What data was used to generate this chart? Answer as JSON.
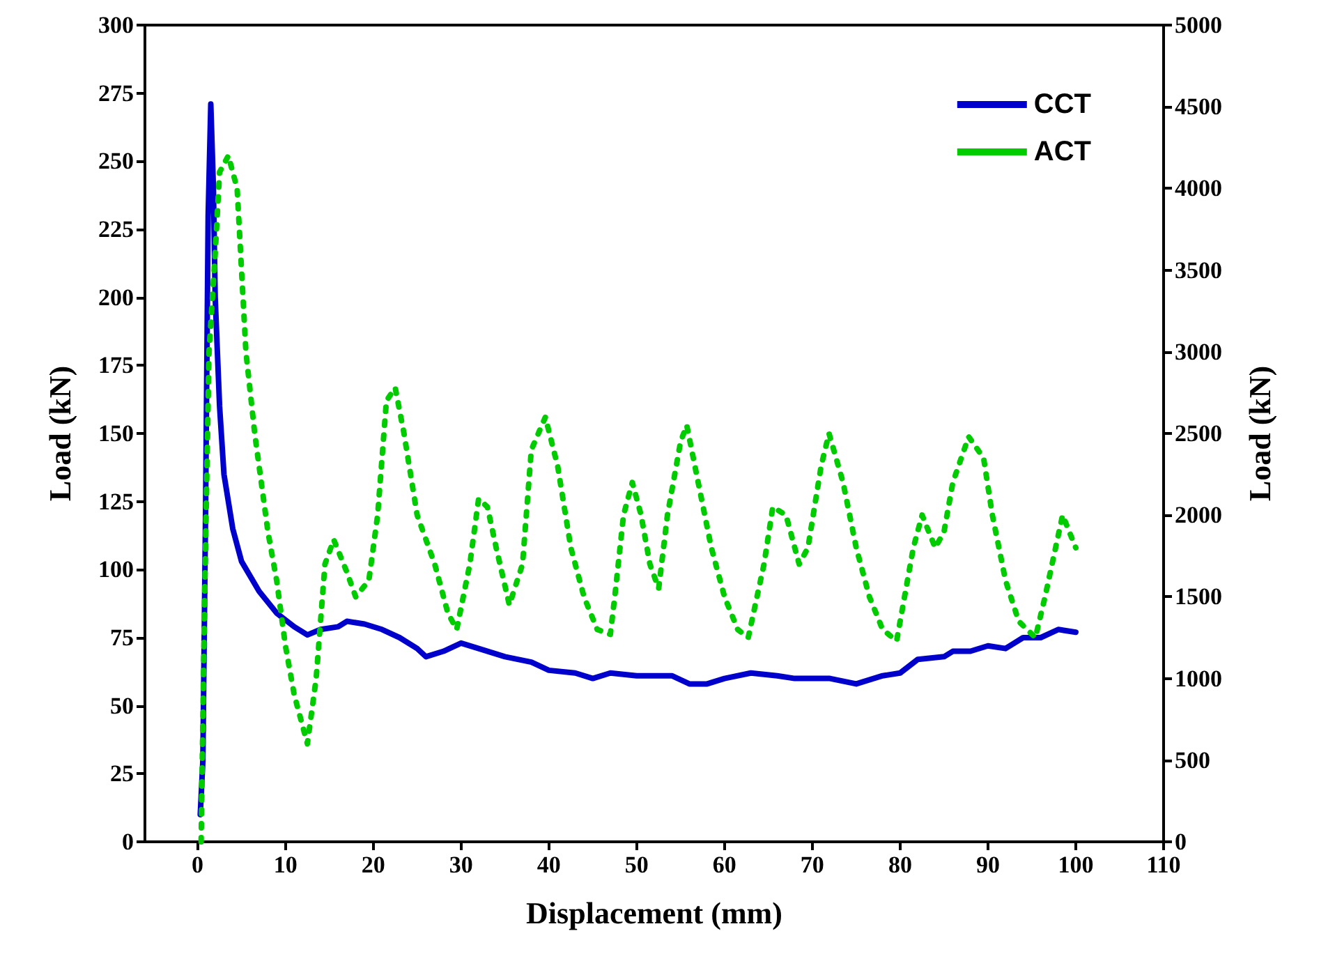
{
  "chart_data": {
    "type": "line",
    "xlabel": "Displacement (mm)",
    "ylabel": "Load (kN)",
    "y2label": "Load (kN)",
    "xlim": [
      -6,
      110
    ],
    "xticks": [
      0,
      10,
      20,
      30,
      40,
      50,
      60,
      70,
      80,
      90,
      100,
      110
    ],
    "ylim": [
      0,
      300
    ],
    "yticks": [
      0,
      25,
      50,
      75,
      100,
      125,
      150,
      175,
      200,
      225,
      250,
      275,
      300
    ],
    "y2lim": [
      0,
      5000
    ],
    "y2ticks": [
      0,
      500,
      1000,
      1500,
      2000,
      2500,
      3000,
      3500,
      4000,
      4500,
      5000
    ],
    "grid": false,
    "legend": "top right",
    "marker": "none",
    "series": [
      {
        "name": "CCT",
        "color": "#0000cc",
        "line_style": "solid",
        "x": [
          0.3,
          0.6,
          0.9,
          1.2,
          1.5,
          1.8,
          2,
          2.5,
          3,
          4,
          5,
          7,
          9,
          11,
          12.5,
          14,
          16,
          17,
          19,
          21,
          23,
          25,
          26,
          28,
          30,
          32,
          35,
          38,
          40,
          43,
          45,
          47,
          50,
          54,
          56,
          58,
          60,
          63,
          66,
          68,
          72,
          75,
          78,
          80,
          82,
          85,
          86,
          88,
          90,
          92,
          94,
          96,
          98,
          100
        ],
        "values": [
          10,
          30,
          120,
          230,
          271,
          240,
          200,
          160,
          135,
          115,
          103,
          92,
          84,
          79,
          76,
          78,
          79,
          81,
          80,
          78,
          75,
          71,
          68,
          70,
          73,
          71,
          68,
          66,
          63,
          62,
          60,
          62,
          61,
          61,
          58,
          58,
          60,
          62,
          61,
          60,
          60,
          58,
          61,
          62,
          67,
          68,
          70,
          70,
          72,
          71,
          75,
          75,
          78,
          77
        ]
      },
      {
        "name": "ACT",
        "color": "#00cc00",
        "line_style": "dotted",
        "axis": "y2",
        "x": [
          0.4,
          0.8,
          1.3,
          2,
          2.5,
          3.5,
          4.5,
          5.5,
          6.5,
          8,
          9,
          10,
          11,
          12.5,
          13.5,
          14.5,
          15.5,
          17,
          18,
          19.5,
          20.5,
          21.5,
          22.5,
          23.5,
          25,
          27,
          28.5,
          29.5,
          31,
          32,
          33,
          34,
          35.5,
          37,
          38,
          39.6,
          41,
          42.5,
          44,
          45.5,
          47,
          47.5,
          48.5,
          49.5,
          50.5,
          51.5,
          52.5,
          53.5,
          55,
          55.7,
          57,
          58.5,
          60,
          61.5,
          62.7,
          64.5,
          65.5,
          67,
          68.5,
          69.5,
          71,
          71.9,
          73.5,
          75,
          76.5,
          78,
          79.6,
          80.5,
          81.5,
          82.5,
          84,
          85,
          86,
          87.8,
          89.5,
          90.5,
          92,
          93.5,
          95.4,
          96.5,
          97.5,
          98.5,
          100
        ],
        "values": [
          0,
          1500,
          3000,
          3600,
          4100,
          4200,
          4000,
          3000,
          2500,
          1900,
          1600,
          1200,
          900,
          600,
          1000,
          1700,
          1850,
          1650,
          1500,
          1600,
          2000,
          2700,
          2780,
          2500,
          2000,
          1700,
          1400,
          1300,
          1700,
          2100,
          2050,
          1800,
          1450,
          1700,
          2400,
          2600,
          2300,
          1800,
          1500,
          1300,
          1270,
          1500,
          2000,
          2200,
          2000,
          1700,
          1550,
          2000,
          2450,
          2550,
          2200,
          1800,
          1500,
          1300,
          1250,
          1700,
          2050,
          2000,
          1700,
          1800,
          2300,
          2500,
          2200,
          1800,
          1500,
          1300,
          1230,
          1500,
          1800,
          2000,
          1800,
          1900,
          2200,
          2480,
          2350,
          2000,
          1600,
          1350,
          1250,
          1500,
          1750,
          2000,
          1800
        ]
      }
    ]
  }
}
